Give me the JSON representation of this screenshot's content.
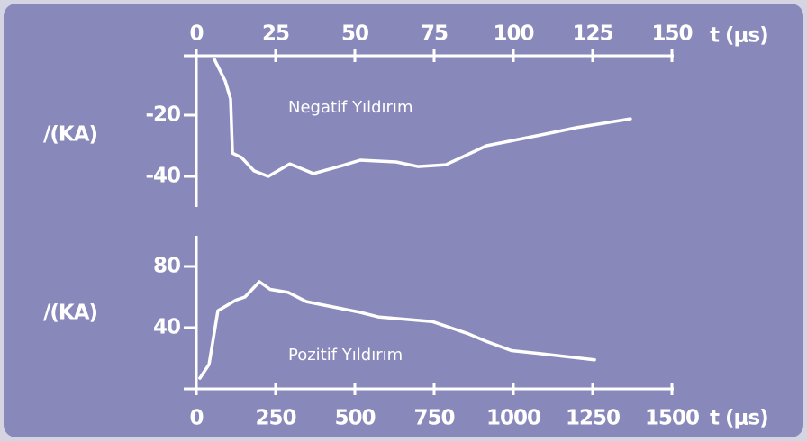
{
  "chart_data": [
    {
      "type": "line",
      "xlabel": "t (μs)",
      "ylabel": "/(KA)",
      "annotation": "Negatif Yıldırım",
      "x_axis_position": "top",
      "color": "#ffffff",
      "x": [
        5.7,
        9.1,
        10.8,
        11.4,
        14.2,
        18.2,
        22.7,
        29.5,
        36.9,
        46,
        51.7,
        63,
        69.9,
        78.7,
        91.5,
        108.5,
        119.9,
        136.9
      ],
      "values": [
        -1.8,
        -8.8,
        -14.7,
        -32.4,
        -33.8,
        -38.2,
        -40,
        -35.9,
        -39.1,
        -36.5,
        -34.7,
        -35.3,
        -36.8,
        -36.2,
        -30,
        -26.5,
        -24.1,
        -21.2
      ],
      "xlim": [
        0,
        150
      ],
      "ylim": [
        -50,
        0
      ],
      "xticks": [
        0,
        25,
        50,
        75,
        100,
        125,
        150
      ],
      "yticks": [
        -20,
        -40
      ]
    },
    {
      "type": "line",
      "xlabel": "t (μs)",
      "ylabel": "/(KA)",
      "annotation": "Pozitif Yıldırım",
      "x_axis_position": "bottom",
      "color": "#ffffff",
      "x": [
        11,
        40,
        68,
        125,
        153,
        199,
        233,
        290,
        347,
        517,
        574,
        744,
        858,
        915,
        994,
        1085,
        1256
      ],
      "values": [
        7,
        16,
        51,
        58,
        60,
        70,
        65,
        63,
        57,
        50,
        47,
        44,
        36,
        31,
        25,
        23,
        19
      ],
      "xlim": [
        0,
        1500
      ],
      "ylim": [
        0,
        100
      ],
      "xticks": [
        0,
        250,
        500,
        750,
        1000,
        1250,
        1500
      ],
      "yticks": [
        40,
        80
      ]
    }
  ]
}
